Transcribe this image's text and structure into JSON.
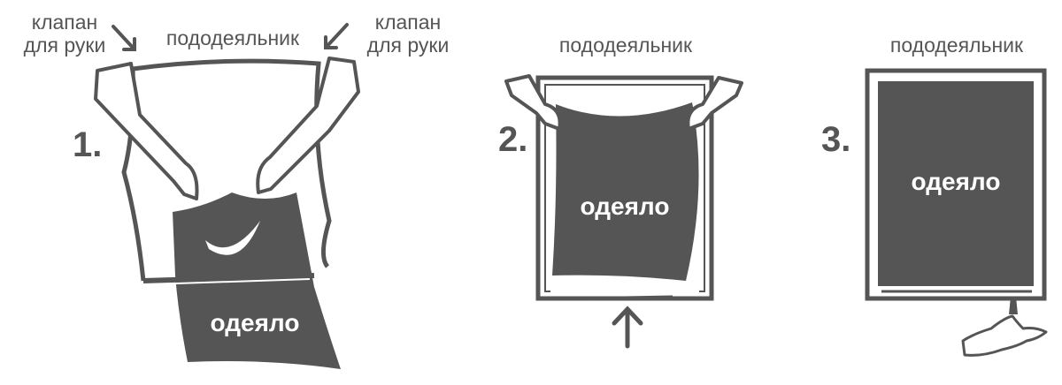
{
  "step1": {
    "number": "1.",
    "flap_left_line1": "клапан",
    "flap_left_line2": "для руки",
    "duvet_cover": "пододеяльник",
    "flap_right_line1": "клапан",
    "flap_right_line2": "для руки",
    "blanket": "одеяло"
  },
  "step2": {
    "number": "2.",
    "duvet_cover": "пододеяльник",
    "blanket": "одеяло"
  },
  "step3": {
    "number": "3.",
    "duvet_cover": "пододеяльник",
    "blanket": "одеяло"
  },
  "colors": {
    "ink": "#555555",
    "blanket": "#555555",
    "background": "#ffffff"
  }
}
